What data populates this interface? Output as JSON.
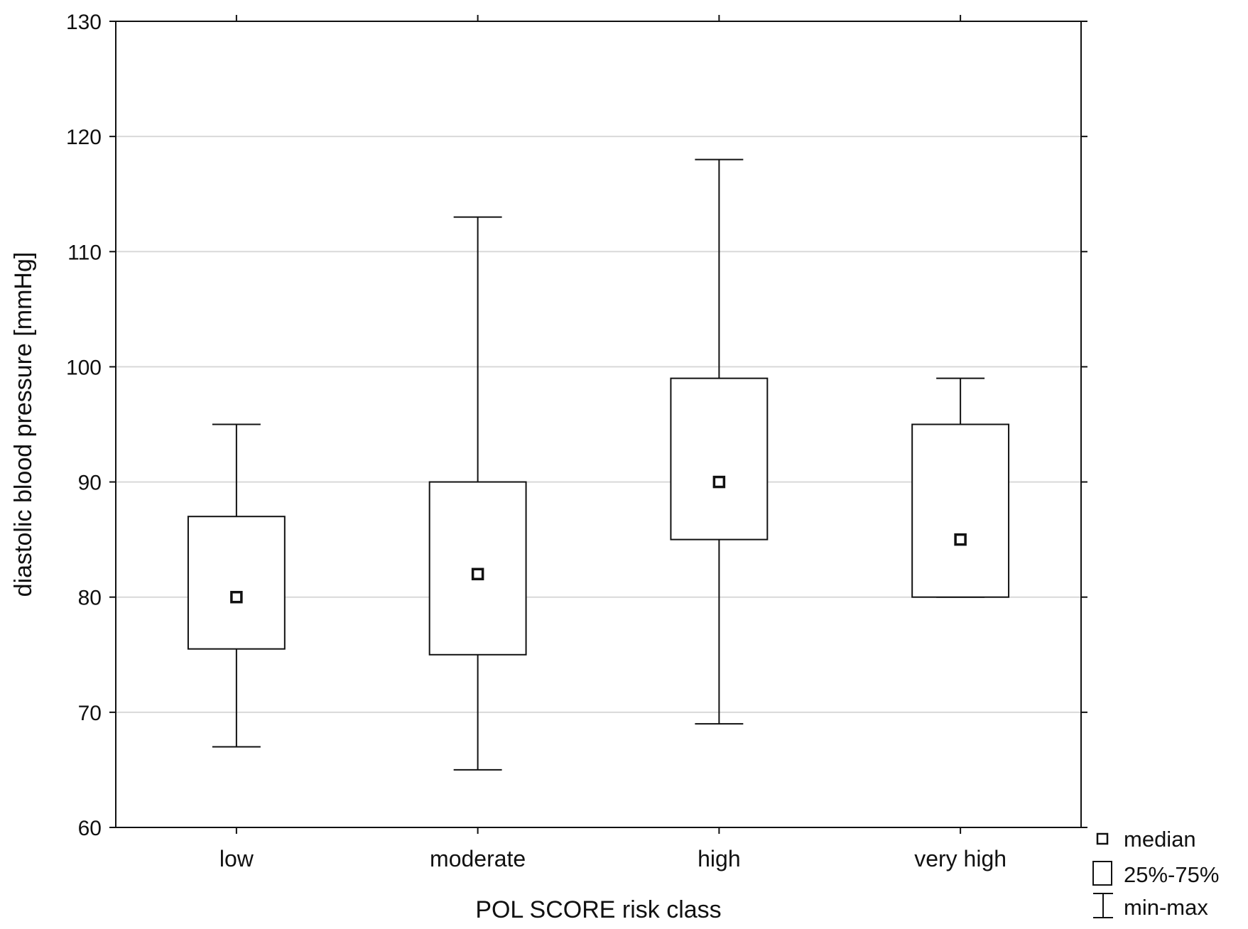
{
  "chart_data": {
    "type": "boxplot",
    "title": "",
    "xlabel": "POL SCORE risk class",
    "ylabel": "diastolic blood pressure [mmHg]",
    "ylim": [
      60,
      130
    ],
    "yticks": [
      60,
      70,
      80,
      90,
      100,
      110,
      120,
      130
    ],
    "grid": true,
    "categories": [
      "low",
      "moderate",
      "high",
      "very high"
    ],
    "boxes": [
      {
        "category": "low",
        "min": 67,
        "q1": 75.5,
        "median": 80,
        "q3": 87,
        "max": 95
      },
      {
        "category": "moderate",
        "min": 65,
        "q1": 75,
        "median": 82,
        "q3": 90,
        "max": 113
      },
      {
        "category": "high",
        "min": 69,
        "q1": 85,
        "median": 90,
        "q3": 99,
        "max": 118
      },
      {
        "category": "very high",
        "min": 80,
        "q1": 80,
        "median": 85,
        "q3": 95,
        "max": 99
      }
    ],
    "legend": {
      "placement": "bottom-right",
      "items": [
        {
          "symbol": "median-square",
          "label": "median"
        },
        {
          "symbol": "box",
          "label": "25%-75%"
        },
        {
          "symbol": "whisker",
          "label": "min-max"
        }
      ]
    },
    "colors": {
      "stroke": "#111111",
      "grid": "#d9d9d9",
      "background": "#ffffff"
    }
  }
}
